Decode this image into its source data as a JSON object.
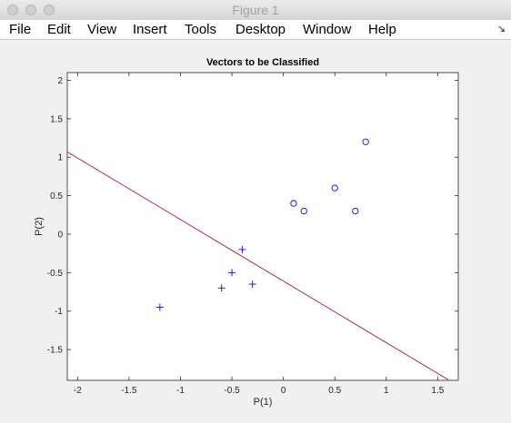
{
  "window": {
    "title": "Figure 1"
  },
  "menu": {
    "items": [
      "File",
      "Edit",
      "View",
      "Insert",
      "Tools",
      "Desktop",
      "Window",
      "Help"
    ],
    "toggle_icon": "dock-arrow-icon"
  },
  "chart_data": {
    "type": "scatter",
    "title": "Vectors to be Classified",
    "xlabel": "P(1)",
    "ylabel": "P(2)",
    "xlim": [
      -2.1,
      1.7
    ],
    "ylim": [
      -1.9,
      2.1
    ],
    "xticks": [
      -2,
      -1.5,
      -1,
      -0.5,
      0,
      0.5,
      1,
      1.5
    ],
    "xtick_labels": [
      "-2",
      "-1.5",
      "-1",
      "-0.5",
      "0",
      "0.5",
      "1",
      "1.5"
    ],
    "yticks": [
      -1.5,
      -1,
      -0.5,
      0,
      0.5,
      1,
      1.5,
      2
    ],
    "ytick_labels": [
      "-1.5",
      "-1",
      "-0.5",
      "0",
      "0.5",
      "1",
      "1.5",
      "2"
    ],
    "grid": false,
    "series": [
      {
        "marker": "plus",
        "color": "#0000ff",
        "points": [
          [
            -1.2,
            -0.95
          ],
          [
            -0.6,
            -0.7
          ],
          [
            -0.5,
            -0.5
          ],
          [
            -0.4,
            -0.2
          ],
          [
            -0.3,
            -0.65
          ]
        ]
      },
      {
        "marker": "circle",
        "color": "#0000ff",
        "points": [
          [
            0.1,
            0.4
          ],
          [
            0.2,
            0.3
          ],
          [
            0.5,
            0.6
          ],
          [
            0.7,
            0.3
          ],
          [
            0.8,
            1.2
          ]
        ]
      }
    ],
    "decision_line": {
      "color": "#b2333c",
      "points": [
        [
          -2.1,
          1.07
        ],
        [
          1.6,
          -1.89
        ]
      ]
    }
  }
}
